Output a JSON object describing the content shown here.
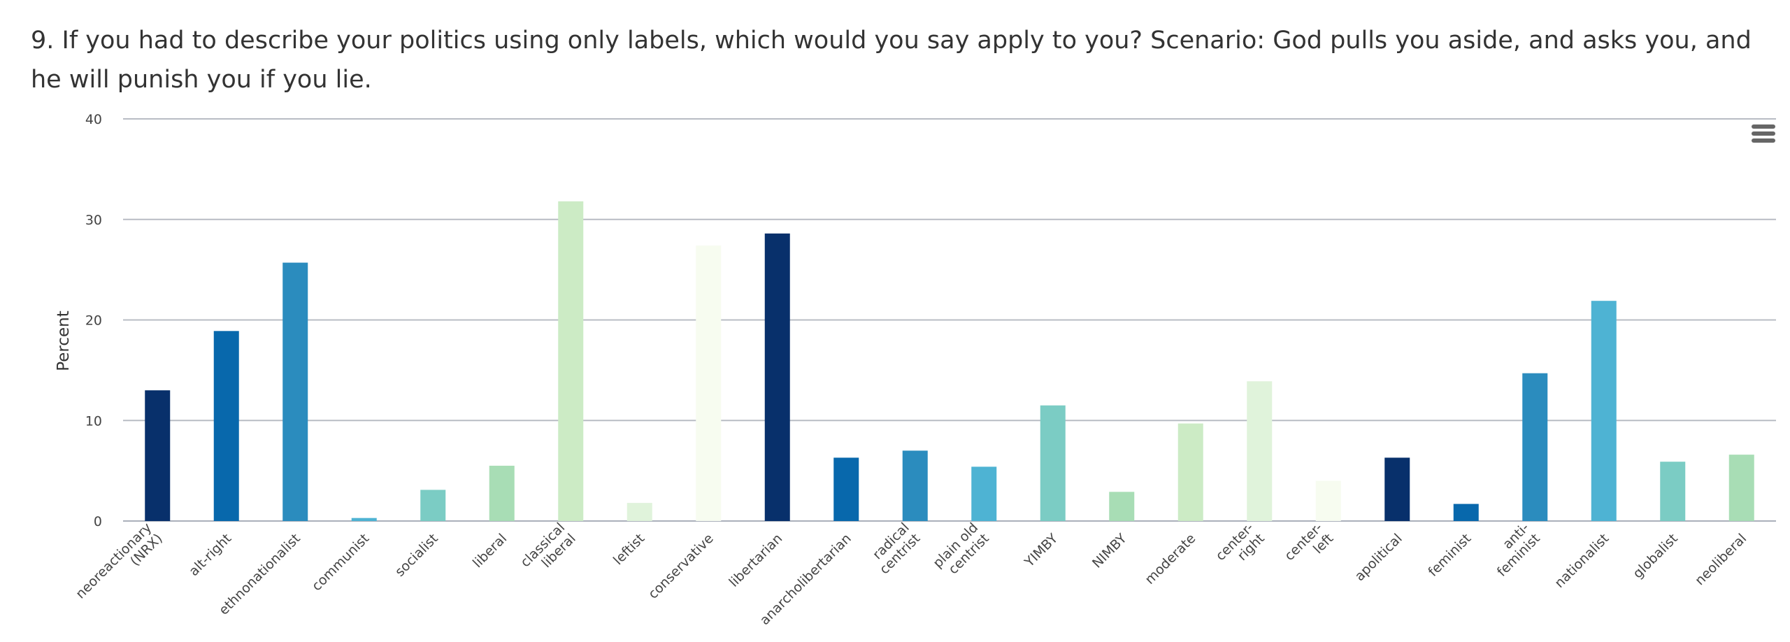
{
  "title": "9. If you had to describe your politics using only labels, which would you say apply to you? Scenario: God pulls you aside, and asks you, and he will punish you if you lie.",
  "menu_icon": "hamburger-menu-icon",
  "chart_data": {
    "type": "bar",
    "title": "9. If you had to describe your politics using only labels, which would you say apply to you? Scenario: God pulls you aside, and asks you, and he will punish you if you lie.",
    "xlabel": "",
    "ylabel": "Percent",
    "ylim": [
      0,
      40
    ],
    "yticks": [
      0,
      10,
      20,
      30,
      40
    ],
    "grid": true,
    "legend": "none",
    "categories": [
      [
        "neoreactionary",
        "(NRX)"
      ],
      [
        "alt-right"
      ],
      [
        "ethnonationalist"
      ],
      [
        "communist"
      ],
      [
        "socialist"
      ],
      [
        "liberal"
      ],
      [
        "classical",
        "liberal"
      ],
      [
        "leftist"
      ],
      [
        "conservative"
      ],
      [
        "libertarian"
      ],
      [
        "anarcholibertarian"
      ],
      [
        "radical",
        "centrist"
      ],
      [
        "plain old",
        "centrist"
      ],
      [
        "YIMBY"
      ],
      [
        "NIMBY"
      ],
      [
        "moderate"
      ],
      [
        "center-",
        "right"
      ],
      [
        "center-",
        "left"
      ],
      [
        "apolitical"
      ],
      [
        "feminist"
      ],
      [
        "anti-",
        "feminist"
      ],
      [
        "nationalist"
      ],
      [
        "globalist"
      ],
      [
        "neoliberal"
      ]
    ],
    "values": [
      13.0,
      18.9,
      25.7,
      0.3,
      3.1,
      5.5,
      31.8,
      1.8,
      27.4,
      28.6,
      6.3,
      7.0,
      5.4,
      11.5,
      2.9,
      9.7,
      13.9,
      4.0,
      6.3,
      1.7,
      14.7,
      21.9,
      5.9,
      6.6
    ],
    "colors": [
      "#08306b",
      "#0868ac",
      "#2b8cbe",
      "#4eb3d3",
      "#7bccc4",
      "#a8ddb5",
      "#ccebc5",
      "#e0f3db",
      "#f7fcf0"
    ]
  }
}
